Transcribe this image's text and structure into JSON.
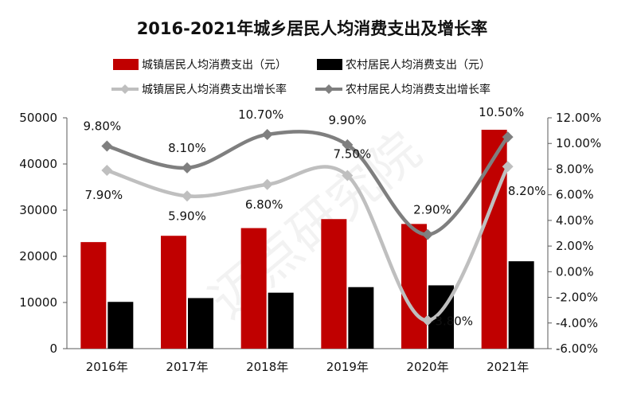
{
  "chart_data": {
    "type": "bar+line",
    "title": "2016-2021年城乡居民人均消费支出及增长率",
    "categories": [
      "2016年",
      "2017年",
      "2018年",
      "2019年",
      "2020年",
      "2021年"
    ],
    "bar_series": [
      {
        "name": "城镇居民人均消费支出（元）",
        "color": "#c00000",
        "values": [
          23079,
          24445,
          26112,
          28063,
          27007,
          47412
        ]
      },
      {
        "name": "农村居民人均消费支出（元）",
        "color": "#000000",
        "values": [
          10130,
          10955,
          12124,
          13328,
          13713,
          18931
        ]
      }
    ],
    "line_series": [
      {
        "name": "城镇居民人均消费支出增长率",
        "color": "#bfbfbf",
        "values": [
          7.9,
          5.9,
          6.8,
          7.5,
          -3.8,
          8.2
        ],
        "labels": [
          "7.90%",
          "5.90%",
          "6.80%",
          "7.50%",
          "-3.80%",
          "8.20%"
        ]
      },
      {
        "name": "农村居民人均消费支出增长率",
        "color": "#7f7f7f",
        "values": [
          9.8,
          8.1,
          10.7,
          9.9,
          2.9,
          10.5
        ],
        "labels": [
          "9.80%",
          "8.10%",
          "10.70%",
          "9.90%",
          "2.90%",
          "10.50%"
        ]
      }
    ],
    "y_left": {
      "min": 0,
      "max": 50000,
      "ticks": [
        0,
        10000,
        20000,
        30000,
        40000,
        50000
      ],
      "tick_labels": [
        "0",
        "10000",
        "20000",
        "30000",
        "40000",
        "50000"
      ]
    },
    "y_right": {
      "min": -6,
      "max": 12,
      "ticks": [
        -6,
        -4,
        -2,
        0,
        2,
        4,
        6,
        8,
        10,
        12
      ],
      "tick_labels": [
        "-6.00%",
        "-4.00%",
        "-2.00%",
        "0.00%",
        "2.00%",
        "4.00%",
        "6.00%",
        "8.00%",
        "10.00%",
        "12.00%"
      ]
    },
    "legend_position": "top",
    "grid": false,
    "watermark": "迈点研究院"
  }
}
